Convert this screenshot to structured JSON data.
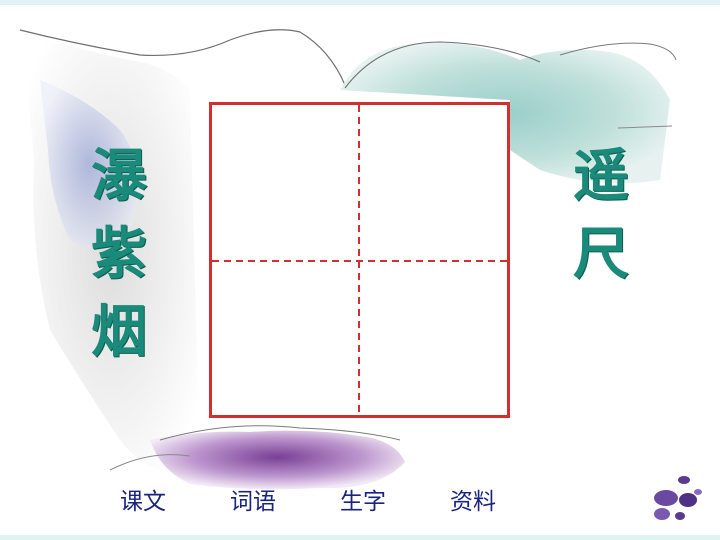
{
  "left_column": [
    "瀑",
    "紫",
    "烟"
  ],
  "right_column": [
    "遥",
    "尺"
  ],
  "nav": {
    "items": [
      "课文",
      "词语",
      "生字",
      "资料"
    ]
  },
  "colors": {
    "character_teal": "#1a8a7a",
    "grid_red": "#d32f2f",
    "nav_text": "#1a237e"
  }
}
